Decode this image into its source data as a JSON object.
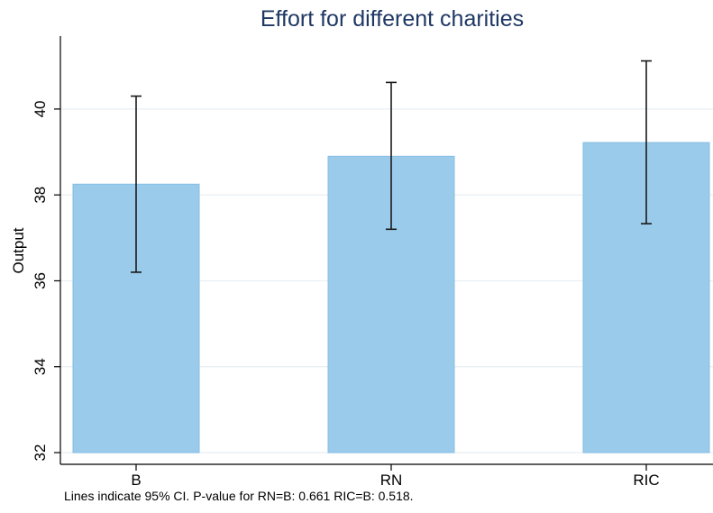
{
  "chart_data": {
    "type": "bar",
    "title": "Effort for different charities",
    "xlabel": "",
    "ylabel": "Output",
    "categories": [
      "B",
      "RN",
      "RIC"
    ],
    "values": [
      38.25,
      38.9,
      39.22
    ],
    "error_bars": {
      "lower": [
        36.2,
        37.2,
        37.33
      ],
      "upper": [
        40.3,
        40.62,
        41.12
      ]
    },
    "ylim": [
      32,
      41.3
    ],
    "yticks": [
      32,
      34,
      36,
      38,
      40
    ],
    "grid": true,
    "note": "Lines indicate 95% CI. P-value for RN=B: 0.661 RIC=B: 0.518."
  },
  "colors": {
    "bar_fill": "#9acbeb",
    "bar_edge": "#86bde3",
    "error_bar": "#1a1a1a",
    "grid": "#e6eef2",
    "title": "#1f3864"
  }
}
